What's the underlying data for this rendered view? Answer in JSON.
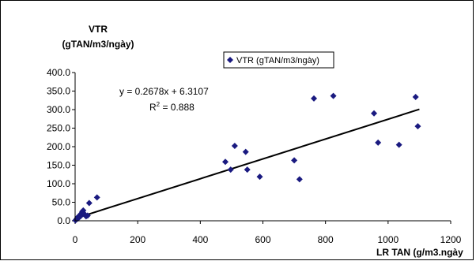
{
  "chart_data": {
    "type": "scatter",
    "title": "",
    "ylabel_line1": "VTR",
    "ylabel_line2": "(gTAN/m3/ngày)",
    "xlabel": "LR TAN (g/m3.ngày",
    "xlim": [
      0,
      1200
    ],
    "ylim": [
      0,
      400
    ],
    "x_ticks": [
      "0",
      "200",
      "400",
      "600",
      "800",
      "1000",
      "1200"
    ],
    "y_ticks": [
      "0.0",
      "50.0",
      "100.0",
      "150.0",
      "200.0",
      "250.0",
      "300.0",
      "350.0",
      "400.0"
    ],
    "grid": false,
    "legend_position": "top-center",
    "series": [
      {
        "name": "VTR (gTAN/m3/ngày)",
        "color": "#1a1a80",
        "marker": "diamond",
        "x": [
          1,
          3,
          5,
          7,
          9,
          11,
          13,
          15,
          17,
          20,
          23,
          26,
          30,
          35,
          40,
          45,
          70,
          480,
          497,
          510,
          545,
          550,
          590,
          700,
          717,
          763,
          825,
          955,
          968,
          1035,
          1088,
          1095
        ],
        "y": [
          1,
          3,
          5,
          8,
          6,
          12,
          10,
          15,
          12,
          20,
          25,
          28,
          18,
          12,
          14,
          48,
          63,
          159,
          138,
          202,
          186,
          138,
          119,
          163,
          112,
          330,
          337,
          290,
          211,
          205,
          334,
          255
        ]
      }
    ],
    "trendline": {
      "slope": 0.2678,
      "intercept": 6.3107,
      "x_range": [
        0,
        1100
      ],
      "color": "#000000",
      "equation_text": "y = 0.2678x + 6.3107",
      "r2_prefix": "R",
      "r2_sup": "2",
      "r2_suffix": " = 0.888"
    }
  }
}
